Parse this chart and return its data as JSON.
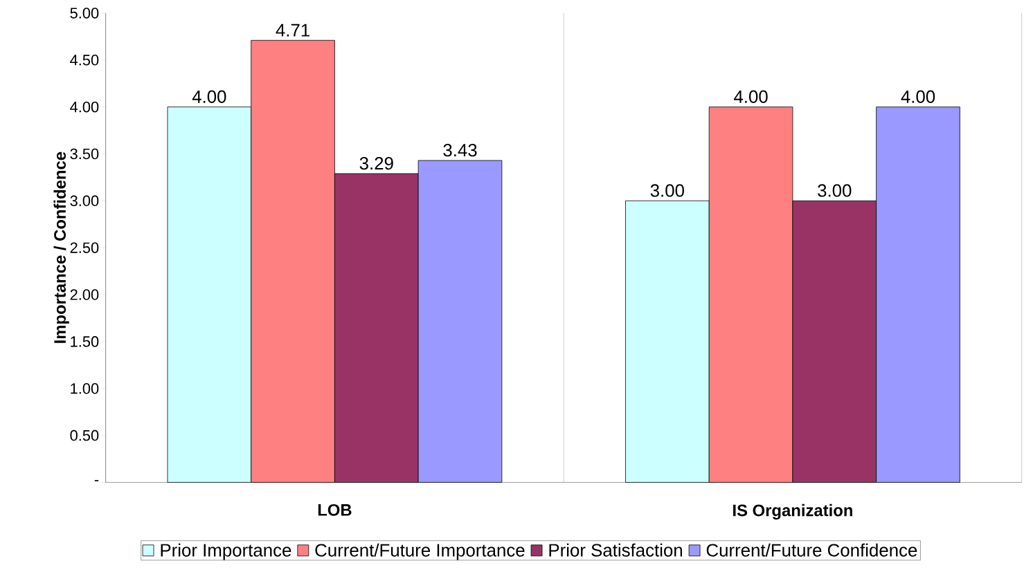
{
  "chart_data": {
    "type": "bar",
    "ylabel": "Importance / Confidence",
    "categories": [
      "LOB",
      "IS Organization"
    ],
    "series": [
      {
        "name": "Prior Importance",
        "color": "#ccffff",
        "values": [
          4.0,
          3.0
        ],
        "value_labels": [
          "4.00",
          "3.00"
        ]
      },
      {
        "name": "Current/Future Importance",
        "color": "#ff8080",
        "values": [
          4.71,
          4.0
        ],
        "value_labels": [
          "4.71",
          "4.00"
        ]
      },
      {
        "name": "Prior Satisfaction",
        "color": "#993366",
        "values": [
          3.29,
          3.0
        ],
        "value_labels": [
          "3.29",
          "3.00"
        ]
      },
      {
        "name": "Current/Future Confidence",
        "color": "#9999ff",
        "values": [
          3.43,
          4.0
        ],
        "value_labels": [
          "3.43",
          "4.00"
        ]
      }
    ],
    "ylim": [
      0,
      5
    ],
    "yticks": [
      {
        "value": 0,
        "label": "-"
      },
      {
        "value": 0.5,
        "label": "0.50"
      },
      {
        "value": 1,
        "label": "1.00"
      },
      {
        "value": 1.5,
        "label": "1.50"
      },
      {
        "value": 2,
        "label": "2.00"
      },
      {
        "value": 2.5,
        "label": "2.50"
      },
      {
        "value": 3,
        "label": "3.00"
      },
      {
        "value": 3.5,
        "label": "3.50"
      },
      {
        "value": 4,
        "label": "4.00"
      },
      {
        "value": 4.5,
        "label": "4.50"
      },
      {
        "value": 5,
        "label": "5.00"
      }
    ],
    "grid": "x",
    "legend": "bottom"
  }
}
